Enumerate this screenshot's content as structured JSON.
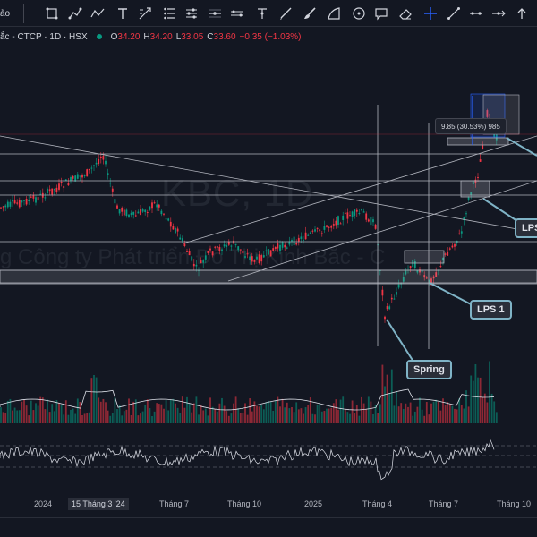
{
  "toolbar": {
    "left_label": "ảo",
    "tools": [
      "rectangle-tool",
      "path-tool",
      "polyline-tool",
      "text-tool",
      "long-position-tool",
      "date-range-tool",
      "price-range-tool",
      "vertical-line-tool",
      "pen-tool",
      "brush-tool",
      "arc-tool",
      "circle-tool",
      "callout-tool",
      "eraser-tool",
      "crosshair-tool",
      "trendline-tool",
      "horizontal-ray-tool",
      "more-tool"
    ]
  },
  "symbol": {
    "name": "ắc - CTCP · 1D · HSX",
    "open_label": "O",
    "open": "34.20",
    "high_label": "H",
    "high": "34.20",
    "low_label": "L",
    "low": "33.05",
    "close_label": "C",
    "close": "33.60",
    "change": "−0.35 (−1.03%)"
  },
  "chart": {
    "watermark": "KBC, 1D",
    "watermark_sub": "g Công ty Phát triển Đô Thị Kinh Bắc - C",
    "measure_label": "9.85 (30.53%) 985",
    "callouts": [
      "Spring",
      "LPS 1",
      "LPS"
    ],
    "colors": {
      "up": "#089981",
      "down": "#f23645",
      "background": "#131722",
      "callout_border": "#7fb3c6"
    }
  },
  "time_axis": {
    "ticks": [
      "2024",
      "15 Tháng 3 '24",
      "Tháng 7",
      "Tháng 10",
      "2025",
      "Tháng 4",
      "Tháng 7",
      "Tháng 10"
    ]
  }
}
